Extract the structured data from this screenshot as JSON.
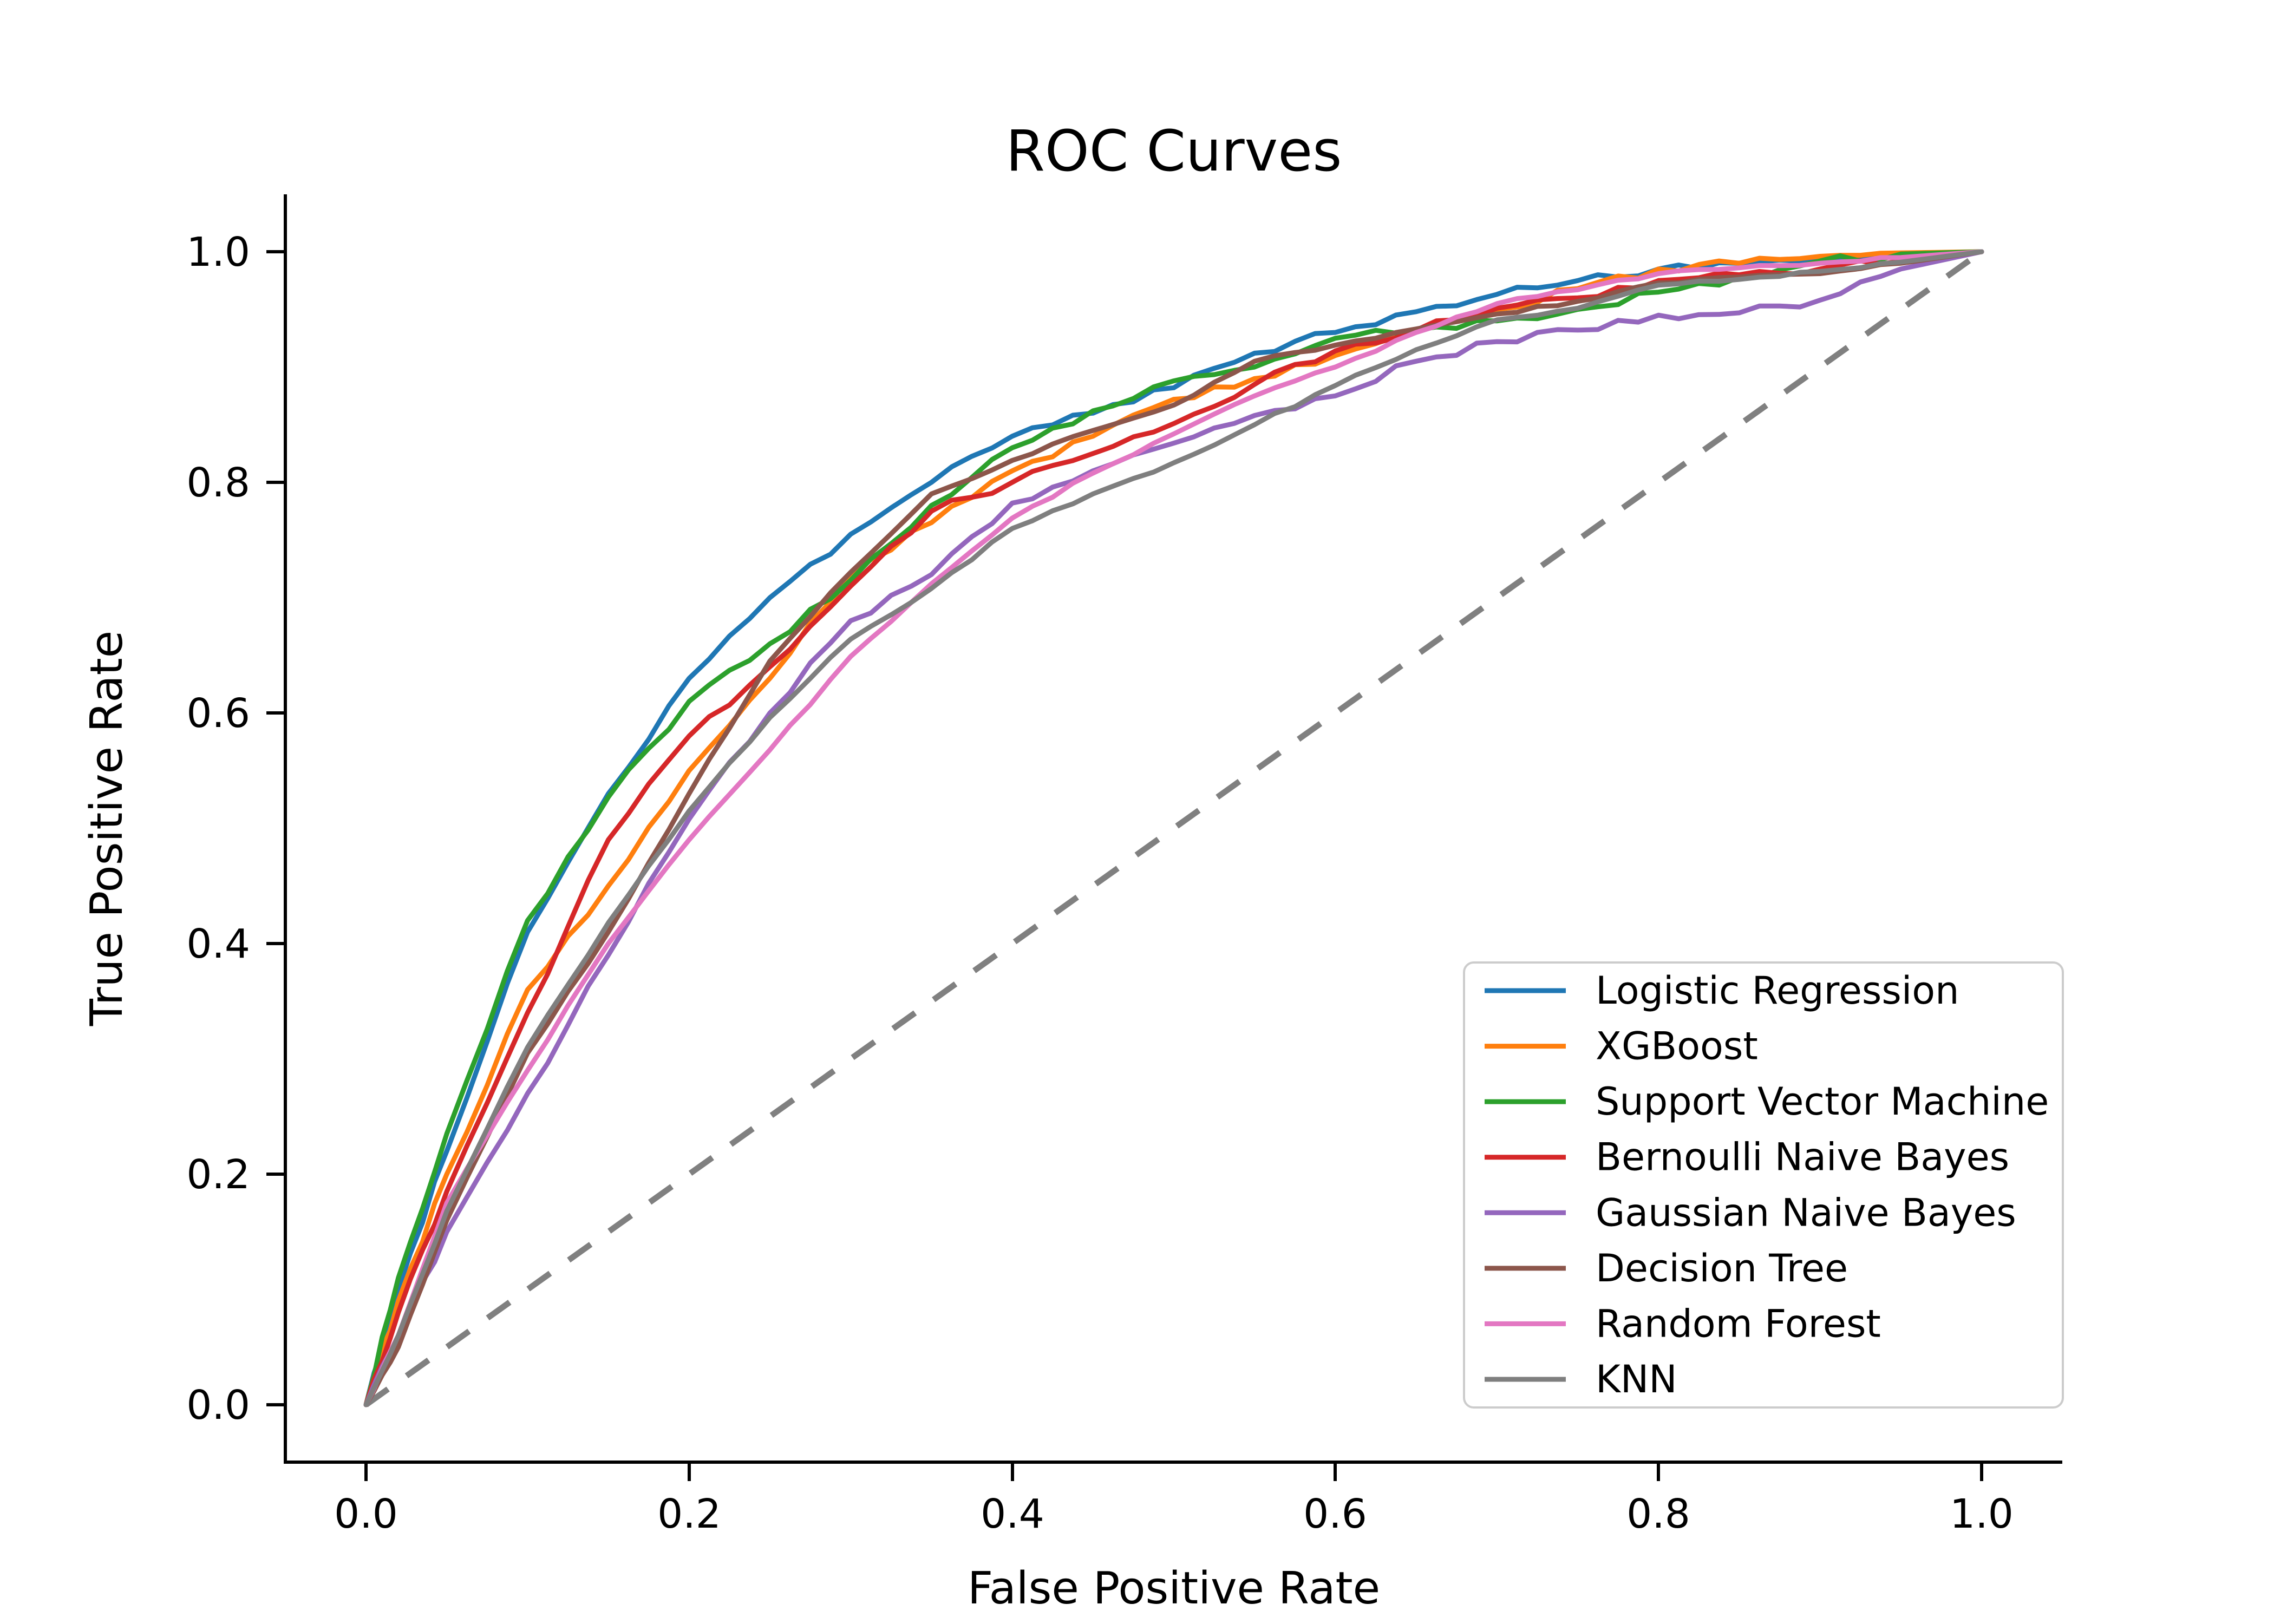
{
  "title": "ROC Curves",
  "axes": {
    "x": {
      "label": "False Positive Rate",
      "ticks": [
        "0.0",
        "0.2",
        "0.4",
        "0.6",
        "0.8",
        "1.0"
      ]
    },
    "y": {
      "label": "True Positive Rate",
      "ticks": [
        "0.0",
        "0.2",
        "0.4",
        "0.6",
        "0.8",
        "1.0"
      ]
    }
  },
  "chart_data": {
    "type": "line",
    "title": "ROC Curves",
    "xlabel": "False Positive Rate",
    "ylabel": "True Positive Rate",
    "xlim": [
      0.0,
      1.0
    ],
    "ylim": [
      0.0,
      1.0
    ],
    "grid": false,
    "legend_position": "lower right",
    "x": [
      0,
      0.02,
      0.05,
      0.1,
      0.15,
      0.2,
      0.25,
      0.3,
      0.35,
      0.4,
      0.45,
      0.5,
      0.55,
      0.6,
      0.65,
      0.7,
      0.75,
      0.8,
      0.85,
      0.9,
      0.95,
      1.0
    ],
    "series": [
      {
        "name": "Logistic Regression",
        "color": "#1f77b4",
        "values": [
          0,
          0.1,
          0.22,
          0.41,
          0.53,
          0.63,
          0.7,
          0.755,
          0.8,
          0.84,
          0.86,
          0.882,
          0.912,
          0.93,
          0.948,
          0.963,
          0.975,
          0.985,
          0.99,
          0.995,
          0.998,
          1.0
        ]
      },
      {
        "name": "XGBoost",
        "color": "#ff7f0e",
        "values": [
          0,
          0.09,
          0.2,
          0.36,
          0.45,
          0.55,
          0.63,
          0.72,
          0.765,
          0.81,
          0.84,
          0.872,
          0.89,
          0.91,
          0.932,
          0.95,
          0.968,
          0.985,
          0.99,
          0.996,
          0.999,
          1.0
        ]
      },
      {
        "name": "Support Vector Machine",
        "color": "#2ca02c",
        "values": [
          0,
          0.11,
          0.235,
          0.42,
          0.527,
          0.61,
          0.66,
          0.715,
          0.78,
          0.83,
          0.862,
          0.888,
          0.9,
          0.925,
          0.932,
          0.94,
          0.95,
          0.965,
          0.978,
          0.992,
          0.998,
          1.0
        ]
      },
      {
        "name": "Bernoulli Naive Bayes",
        "color": "#d62728",
        "values": [
          0,
          0.08,
          0.185,
          0.34,
          0.49,
          0.58,
          0.64,
          0.71,
          0.775,
          0.8,
          0.825,
          0.851,
          0.885,
          0.914,
          0.932,
          0.951,
          0.96,
          0.975,
          0.98,
          0.985,
          0.992,
          1.0
        ]
      },
      {
        "name": "Gaussian Naive Bayes",
        "color": "#9467bd",
        "values": [
          0,
          0.06,
          0.15,
          0.27,
          0.39,
          0.508,
          0.6,
          0.68,
          0.72,
          0.782,
          0.81,
          0.834,
          0.858,
          0.875,
          0.905,
          0.922,
          0.932,
          0.945,
          0.947,
          0.958,
          0.985,
          1.0
        ]
      },
      {
        "name": "Decision Tree",
        "color": "#8c564b",
        "values": [
          0,
          0.05,
          0.16,
          0.305,
          0.41,
          0.53,
          0.645,
          0.722,
          0.79,
          0.819,
          0.845,
          0.867,
          0.905,
          0.919,
          0.933,
          0.946,
          0.957,
          0.973,
          0.978,
          0.981,
          0.99,
          1.0
        ]
      },
      {
        "name": "Random Forest",
        "color": "#e377c2",
        "values": [
          0,
          0.06,
          0.175,
          0.29,
          0.4,
          0.49,
          0.568,
          0.649,
          0.712,
          0.769,
          0.808,
          0.842,
          0.875,
          0.9,
          0.93,
          0.955,
          0.967,
          0.981,
          0.986,
          0.99,
          0.995,
          1.0
        ]
      },
      {
        "name": "KNN",
        "color": "#7f7f7f",
        "values": [
          0,
          0.06,
          0.168,
          0.31,
          0.418,
          0.515,
          0.596,
          0.664,
          0.708,
          0.76,
          0.79,
          0.817,
          0.85,
          0.884,
          0.915,
          0.941,
          0.951,
          0.971,
          0.976,
          0.983,
          0.991,
          1.0
        ]
      }
    ],
    "reference_line": {
      "name": "chance-diagonal",
      "style": "dashed",
      "color": "#808080",
      "from": [
        0,
        0
      ],
      "to": [
        1,
        1
      ]
    }
  }
}
